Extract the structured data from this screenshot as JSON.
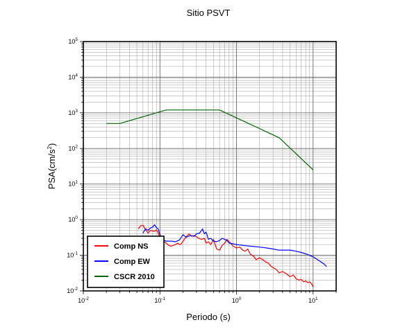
{
  "chart_data": {
    "type": "line",
    "title": "Sitio PSVT",
    "xlabel": "Periodo (s)",
    "ylabel_base": "PSA(cm/s",
    "ylabel_exp": "2",
    "ylabel_tail": ")",
    "x_scale": "log",
    "y_scale": "log",
    "xlim": [
      0.01,
      20
    ],
    "ylim": [
      0.01,
      100000
    ],
    "grid": true,
    "legend_position": "bottom-left",
    "x_ticks": [
      {
        "value": 0.01,
        "base": "10",
        "exp": "-2"
      },
      {
        "value": 0.1,
        "base": "10",
        "exp": "-1"
      },
      {
        "value": 1,
        "base": "10",
        "exp": "0"
      },
      {
        "value": 10,
        "base": "10",
        "exp": "1"
      }
    ],
    "y_ticks": [
      {
        "value": 0.01,
        "base": "10",
        "exp": "-2"
      },
      {
        "value": 0.1,
        "base": "10",
        "exp": "-1"
      },
      {
        "value": 1,
        "base": "10",
        "exp": "0"
      },
      {
        "value": 10,
        "base": "10",
        "exp": "1"
      },
      {
        "value": 100,
        "base": "10",
        "exp": "2"
      },
      {
        "value": 1000,
        "base": "10",
        "exp": "3"
      },
      {
        "value": 10000,
        "base": "10",
        "exp": "4"
      },
      {
        "value": 100000,
        "base": "10",
        "exp": "5"
      }
    ],
    "series": [
      {
        "name": "Comp NS",
        "color": "#ff0000",
        "x": [
          0.052,
          0.056,
          0.06,
          0.065,
          0.07,
          0.075,
          0.08,
          0.085,
          0.09,
          0.095,
          0.1,
          0.11,
          0.12,
          0.13,
          0.14,
          0.15,
          0.16,
          0.17,
          0.18,
          0.19,
          0.2,
          0.22,
          0.24,
          0.26,
          0.28,
          0.3,
          0.32,
          0.35,
          0.38,
          0.4,
          0.43,
          0.46,
          0.5,
          0.55,
          0.6,
          0.65,
          0.7,
          0.75,
          0.8,
          0.9,
          1.0,
          1.1,
          1.2,
          1.3,
          1.4,
          1.5,
          1.6,
          1.7,
          1.8,
          2.0,
          2.2,
          2.4,
          2.6,
          2.8,
          3.0,
          3.3,
          3.6,
          4.0,
          4.5,
          5.0,
          5.5,
          6.0,
          6.5,
          7.0,
          7.5,
          8.0,
          8.5,
          9.0,
          9.5,
          10.0
        ],
        "y": [
          0.55,
          0.68,
          0.7,
          0.52,
          0.42,
          0.5,
          0.48,
          0.47,
          0.52,
          0.42,
          0.32,
          0.26,
          0.22,
          0.19,
          0.18,
          0.19,
          0.2,
          0.22,
          0.2,
          0.21,
          0.25,
          0.33,
          0.4,
          0.34,
          0.36,
          0.33,
          0.3,
          0.28,
          0.3,
          0.22,
          0.24,
          0.2,
          0.28,
          0.15,
          0.14,
          0.19,
          0.22,
          0.28,
          0.24,
          0.18,
          0.16,
          0.17,
          0.14,
          0.13,
          0.15,
          0.11,
          0.1,
          0.09,
          0.075,
          0.085,
          0.075,
          0.065,
          0.06,
          0.05,
          0.045,
          0.04,
          0.032,
          0.035,
          0.03,
          0.025,
          0.028,
          0.022,
          0.02,
          0.021,
          0.018,
          0.019,
          0.017,
          0.018,
          0.016,
          0.013
        ]
      },
      {
        "name": "Comp EW",
        "color": "#0000ff",
        "x": [
          0.06,
          0.065,
          0.07,
          0.075,
          0.08,
          0.085,
          0.09,
          0.095,
          0.1,
          0.11,
          0.12,
          0.14,
          0.16,
          0.18,
          0.2,
          0.22,
          0.25,
          0.28,
          0.3,
          0.33,
          0.36,
          0.38,
          0.4,
          0.43,
          0.46,
          0.5,
          0.55,
          0.6,
          0.65,
          0.7,
          0.75,
          0.8,
          0.9,
          1.0,
          1.2,
          1.5,
          2.0,
          2.5,
          3.0,
          3.5,
          4.0,
          5.0,
          6.0,
          7.0,
          8.0,
          9.0,
          10.0,
          11.0,
          12.0,
          13.0,
          14.0,
          15.0
        ],
        "y": [
          0.42,
          0.55,
          0.5,
          0.58,
          0.62,
          0.72,
          0.6,
          0.55,
          0.38,
          0.27,
          0.25,
          0.25,
          0.24,
          0.27,
          0.38,
          0.32,
          0.36,
          0.34,
          0.4,
          0.42,
          0.55,
          0.4,
          0.45,
          0.28,
          0.3,
          0.25,
          0.24,
          0.26,
          0.3,
          0.28,
          0.26,
          0.22,
          0.21,
          0.2,
          0.19,
          0.18,
          0.17,
          0.16,
          0.15,
          0.14,
          0.14,
          0.14,
          0.13,
          0.12,
          0.11,
          0.1,
          0.09,
          0.08,
          0.07,
          0.063,
          0.056,
          0.048
        ]
      },
      {
        "name": "CSCR 2010",
        "color": "#006400",
        "x": [
          0.02,
          0.03,
          0.12,
          0.6,
          3.6,
          10.0
        ],
        "y": [
          500,
          500,
          1200,
          1200,
          200,
          25
        ]
      }
    ]
  }
}
